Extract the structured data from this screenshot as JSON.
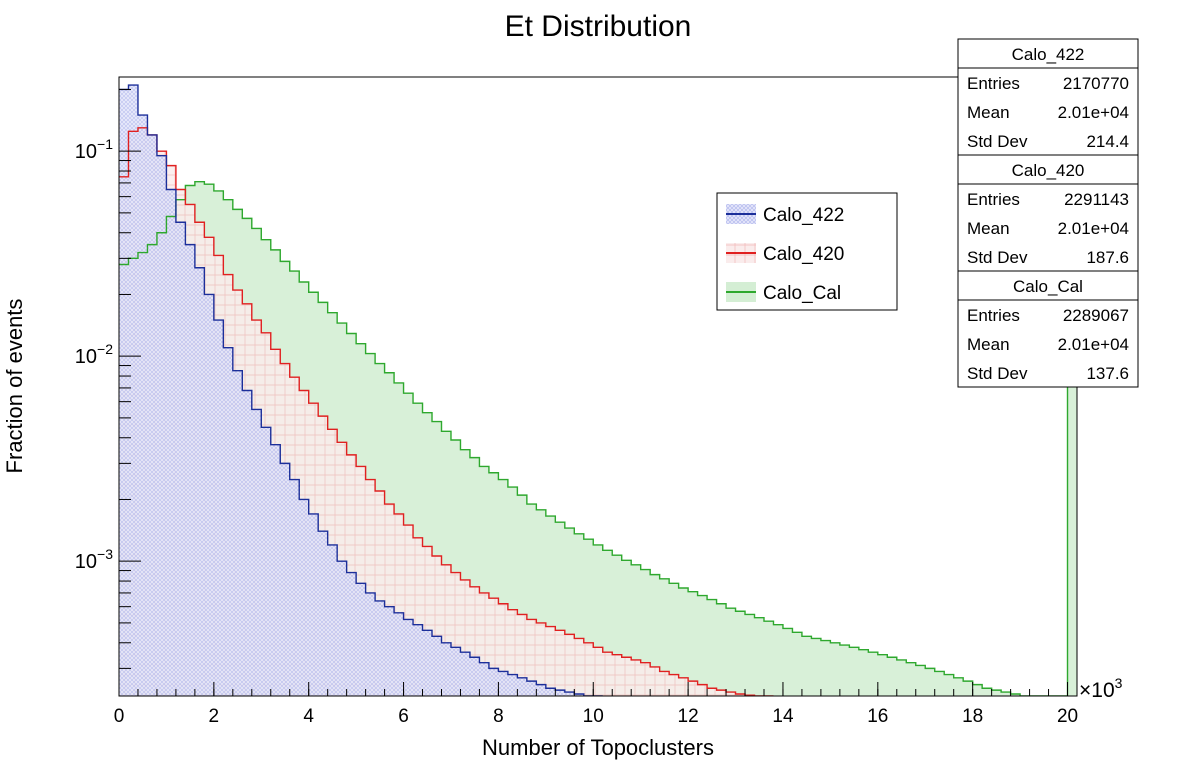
{
  "chart_data": {
    "type": "histogram",
    "title": "Et Distribution",
    "xlabel": "Number of Topoclusters",
    "ylabel": "Fraction of events",
    "x_multiplier": "×10³",
    "x_multiplier_base": "×10",
    "x_multiplier_exp": "3",
    "x_ticks": [
      "0",
      "2",
      "4",
      "6",
      "8",
      "10",
      "12",
      "14",
      "16",
      "18",
      "20"
    ],
    "y_ticks": [
      {
        "base": "10",
        "exp": "−1",
        "value": 0.1
      },
      {
        "base": "10",
        "exp": "−2",
        "value": 0.01
      },
      {
        "base": "10",
        "exp": "−3",
        "value": 0.001
      }
    ],
    "xlim": [
      0,
      20.2
    ],
    "ylim": [
      0.00022,
      0.23
    ],
    "log_y": true,
    "bin_width": 0.2,
    "x_unit_note": "values in thousands of topoclusters",
    "legend": [
      "Calo_422",
      "Calo_420",
      "Calo_Cal"
    ],
    "series": [
      {
        "name": "Calo_422",
        "color": "#1c2f9a",
        "fill": "#b3b8ef",
        "edges": [
          0,
          0.2,
          0.4,
          0.6,
          0.8,
          1.0,
          1.2,
          1.4,
          1.6,
          1.8,
          2.0,
          2.2,
          2.4,
          2.6,
          2.8,
          3.0,
          3.2,
          3.4,
          3.6,
          3.8,
          4.0,
          4.2,
          4.4,
          4.6,
          4.8,
          5.0,
          5.2,
          5.4,
          5.6,
          5.8,
          6.0,
          6.2,
          6.4,
          6.6,
          6.8,
          7.0,
          7.2,
          7.4,
          7.6,
          7.8,
          8.0,
          8.2,
          8.4,
          8.6,
          8.8,
          9.0,
          9.2,
          9.4,
          9.6,
          9.8,
          10.0,
          10.2
        ],
        "values": [
          0.2,
          0.21,
          0.15,
          0.12,
          0.095,
          0.065,
          0.045,
          0.035,
          0.027,
          0.02,
          0.015,
          0.011,
          0.0085,
          0.0068,
          0.0055,
          0.0045,
          0.0037,
          0.003,
          0.0025,
          0.002,
          0.0017,
          0.0014,
          0.0012,
          0.001,
          0.00088,
          0.00078,
          0.0007,
          0.00064,
          0.0006,
          0.00056,
          0.00052,
          0.00049,
          0.00046,
          0.00043,
          0.0004,
          0.00038,
          0.00036,
          0.00034,
          0.00032,
          0.0003,
          0.00029,
          0.00028,
          0.00027,
          0.00026,
          0.00025,
          0.00024,
          0.000235,
          0.00023,
          0.000225,
          0.00022,
          0.00022
        ]
      },
      {
        "name": "Calo_420",
        "color": "#e02020",
        "fill": "#f6c8c8",
        "edges": [
          0,
          0.2,
          0.4,
          0.6,
          0.8,
          1.0,
          1.2,
          1.4,
          1.6,
          1.8,
          2.0,
          2.2,
          2.4,
          2.6,
          2.8,
          3.0,
          3.2,
          3.4,
          3.6,
          3.8,
          4.0,
          4.2,
          4.4,
          4.6,
          4.8,
          5.0,
          5.2,
          5.4,
          5.6,
          5.8,
          6.0,
          6.2,
          6.4,
          6.6,
          6.8,
          7.0,
          7.2,
          7.4,
          7.6,
          7.8,
          8.0,
          8.2,
          8.4,
          8.6,
          8.8,
          9.0,
          9.2,
          9.4,
          9.6,
          9.8,
          10.0,
          10.2,
          10.4,
          10.6,
          10.8,
          11.0,
          11.2,
          11.4,
          11.6,
          11.8,
          12.0,
          12.2,
          12.4,
          12.6,
          12.8,
          13.0,
          13.2,
          13.4,
          13.6,
          13.8
        ],
        "values": [
          0.075,
          0.125,
          0.13,
          0.12,
          0.1,
          0.085,
          0.065,
          0.055,
          0.045,
          0.038,
          0.031,
          0.025,
          0.021,
          0.018,
          0.015,
          0.013,
          0.0108,
          0.0092,
          0.0079,
          0.0068,
          0.0059,
          0.0051,
          0.0044,
          0.0038,
          0.0033,
          0.0029,
          0.0025,
          0.0022,
          0.0019,
          0.0017,
          0.0015,
          0.0013,
          0.00118,
          0.00106,
          0.00096,
          0.00088,
          0.00081,
          0.00075,
          0.0007,
          0.00066,
          0.00062,
          0.00058,
          0.00055,
          0.00052,
          0.0005,
          0.00048,
          0.00046,
          0.00044,
          0.00042,
          0.0004,
          0.00038,
          0.00036,
          0.00035,
          0.00034,
          0.00033,
          0.00032,
          0.000305,
          0.00029,
          0.00028,
          0.00027,
          0.00026,
          0.00025,
          0.00024,
          0.000235,
          0.00023,
          0.000225,
          0.000222,
          0.00022,
          0.00022
        ]
      },
      {
        "name": "Calo_Cal",
        "color": "#2ea82e",
        "fill": "#d4eed4",
        "edges": [
          0,
          0.2,
          0.4,
          0.6,
          0.8,
          1.0,
          1.2,
          1.4,
          1.6,
          1.8,
          2.0,
          2.2,
          2.4,
          2.6,
          2.8,
          3.0,
          3.2,
          3.4,
          3.6,
          3.8,
          4.0,
          4.2,
          4.4,
          4.6,
          4.8,
          5.0,
          5.2,
          5.4,
          5.6,
          5.8,
          6.0,
          6.2,
          6.4,
          6.6,
          6.8,
          7.0,
          7.2,
          7.4,
          7.6,
          7.8,
          8.0,
          8.2,
          8.4,
          8.6,
          8.8,
          9.0,
          9.2,
          9.4,
          9.6,
          9.8,
          10.0,
          10.2,
          10.4,
          10.6,
          10.8,
          11.0,
          11.2,
          11.4,
          11.6,
          11.8,
          12.0,
          12.2,
          12.4,
          12.6,
          12.8,
          13.0,
          13.2,
          13.4,
          13.6,
          13.8,
          14.0,
          14.2,
          14.4,
          14.6,
          14.8,
          15.0,
          15.2,
          15.4,
          15.6,
          15.8,
          16.0,
          16.2,
          16.4,
          16.6,
          16.8,
          17.0,
          17.2,
          17.4,
          17.6,
          17.8,
          18.0,
          18.2,
          18.4,
          18.6,
          18.8,
          19.0,
          19.2,
          19.4,
          19.6,
          19.8,
          20.0,
          20.2
        ],
        "values": [
          0.028,
          0.03,
          0.032,
          0.035,
          0.04,
          0.048,
          0.058,
          0.068,
          0.071,
          0.069,
          0.064,
          0.058,
          0.052,
          0.047,
          0.042,
          0.037,
          0.033,
          0.029,
          0.026,
          0.023,
          0.0205,
          0.0183,
          0.0163,
          0.0145,
          0.0129,
          0.0115,
          0.0103,
          0.0092,
          0.0083,
          0.0074,
          0.0066,
          0.0059,
          0.0053,
          0.0048,
          0.0043,
          0.0039,
          0.0035,
          0.0032,
          0.0029,
          0.0027,
          0.0025,
          0.0023,
          0.0021,
          0.0019,
          0.00178,
          0.00166,
          0.00155,
          0.00145,
          0.00136,
          0.00128,
          0.0012,
          0.00113,
          0.00107,
          0.00101,
          0.00096,
          0.00091,
          0.00086,
          0.00082,
          0.00078,
          0.00074,
          0.00071,
          0.00068,
          0.00065,
          0.00062,
          0.00059,
          0.00057,
          0.00055,
          0.00053,
          0.00051,
          0.00049,
          0.00047,
          0.00045,
          0.00043,
          0.00042,
          0.00041,
          0.0004,
          0.00039,
          0.00038,
          0.00037,
          0.00036,
          0.00035,
          0.00034,
          0.00033,
          0.00032,
          0.00031,
          0.0003,
          0.00029,
          0.00028,
          0.00027,
          0.00026,
          0.00025,
          0.00024,
          0.000235,
          0.00023,
          0.000225,
          0.00022,
          0.00022,
          0.00022,
          0.00022,
          0.00022,
          0.2
        ]
      }
    ]
  },
  "stats_boxes": [
    {
      "title": "Calo_422",
      "rows": [
        {
          "label": "Entries",
          "value": "2170770"
        },
        {
          "label": "Mean",
          "value": "2.01e+04"
        },
        {
          "label": "Std Dev",
          "value": "214.4"
        }
      ]
    },
    {
      "title": "Calo_420",
      "rows": [
        {
          "label": "Entries",
          "value": "2291143"
        },
        {
          "label": "Mean",
          "value": "2.01e+04"
        },
        {
          "label": "Std Dev",
          "value": "187.6"
        }
      ]
    },
    {
      "title": "Calo_Cal",
      "rows": [
        {
          "label": "Entries",
          "value": "2289067"
        },
        {
          "label": "Mean",
          "value": "2.01e+04"
        },
        {
          "label": "Std Dev",
          "value": "137.6"
        }
      ]
    }
  ]
}
